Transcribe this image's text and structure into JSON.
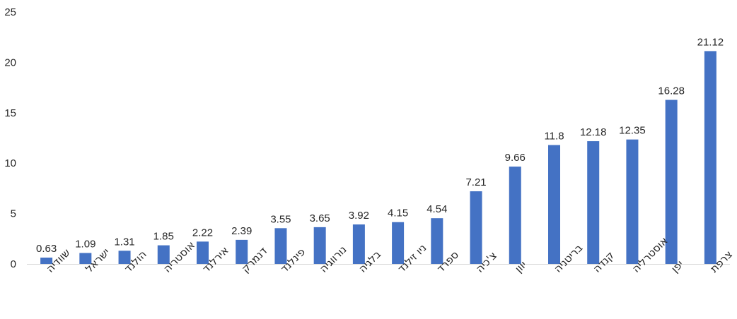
{
  "chart_data": {
    "type": "bar",
    "title": "",
    "xlabel": "",
    "ylabel": "",
    "categories": [
      "שוודיה",
      "ישראל",
      "הולנד",
      "אוסטריה",
      "אירלנד",
      "דנמרק",
      "פינלנד",
      "נורווגיה",
      "בלגיה",
      "ניו זילנד",
      "ספרד",
      "צ'כיה",
      "יוון",
      "בריטניה",
      "קנדה",
      "אוסטרליה",
      "יפן",
      "צרפת"
    ],
    "values": [
      0.63,
      1.09,
      1.31,
      1.85,
      2.22,
      2.39,
      3.55,
      3.65,
      3.92,
      4.15,
      4.54,
      7.21,
      9.66,
      11.8,
      12.18,
      12.35,
      16.28,
      21.12
    ],
    "data_labels": [
      "0.63",
      "1.09",
      "1.31",
      "1.85",
      "2.22",
      "2.39",
      "3.55",
      "3.65",
      "3.92",
      "4.15",
      "4.54",
      "7.21",
      "9.66",
      "11.8",
      "12.18",
      "12.35",
      "16.28",
      "21.12"
    ],
    "yticks": [
      "0",
      "5",
      "10",
      "15",
      "20",
      "25"
    ],
    "ylim": [
      0,
      25
    ],
    "grid": false,
    "legend": "none",
    "bar_color": "#4472C4",
    "axis_color": "#D9D9D9"
  }
}
